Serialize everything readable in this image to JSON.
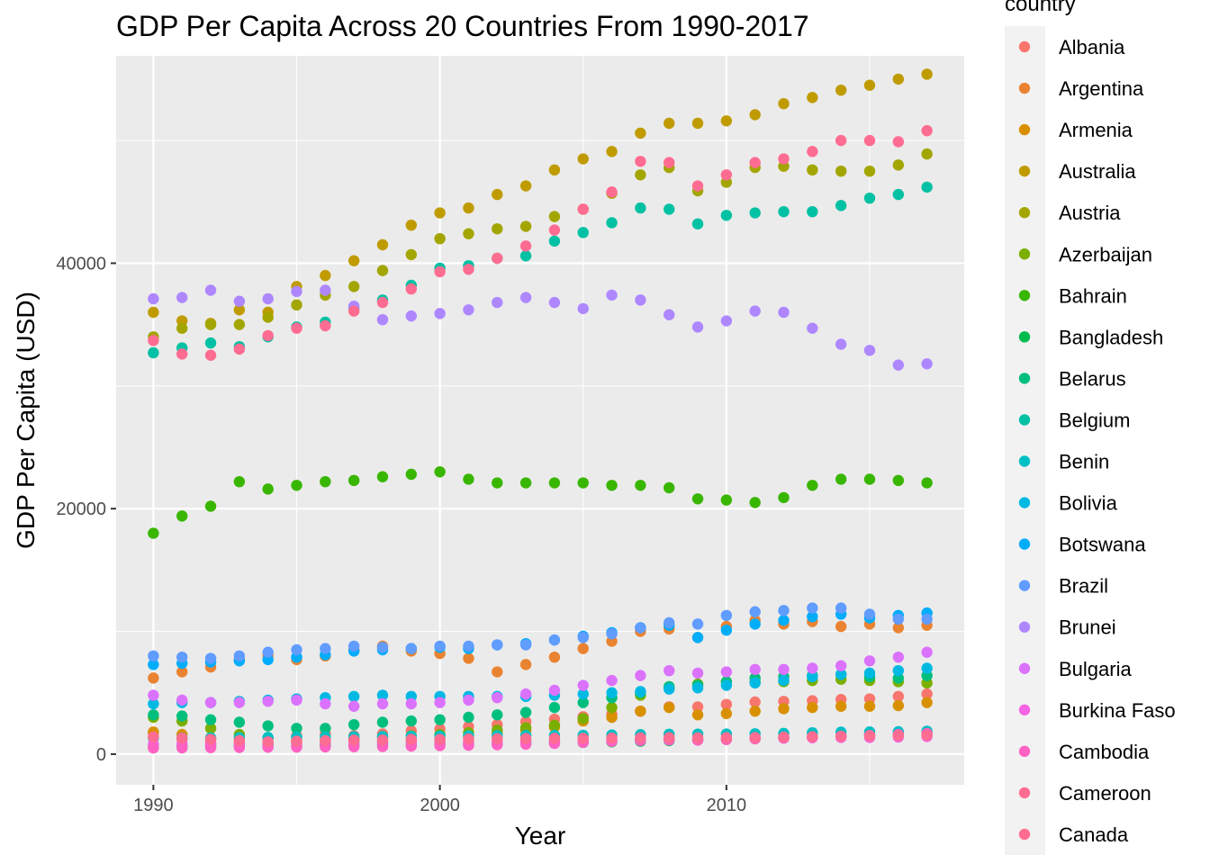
{
  "chart_data": {
    "type": "scatter",
    "title": "GDP Per Capita Across 20 Countries From 1990-2017",
    "xlabel": "Year",
    "ylabel": "GDP Per Capita (USD)",
    "xlim": [
      1988.7,
      2018.3
    ],
    "ylim": [
      -2500,
      56900
    ],
    "x_ticks": [
      1990,
      2000,
      2010
    ],
    "x_tick_labels": [
      "1990",
      "2000",
      "2010"
    ],
    "y_ticks": [
      0,
      20000,
      40000
    ],
    "y_tick_labels": [
      "0",
      "20000",
      "40000"
    ],
    "legend_title": "country",
    "legend_position": "right",
    "grid": true,
    "panel_background": "#ebebeb",
    "x": [
      1990,
      1991,
      1992,
      1993,
      1994,
      1995,
      1996,
      1997,
      1998,
      1999,
      2000,
      2001,
      2002,
      2003,
      2004,
      2005,
      2006,
      2007,
      2008,
      2009,
      2010,
      2011,
      2012,
      2013,
      2014,
      2015,
      2016,
      2017
    ],
    "series": [
      {
        "name": "Albania",
        "color": "#F8766D",
        "values": [
          1700,
          1200,
          1150,
          1250,
          1300,
          1500,
          1650,
          1500,
          1650,
          1900,
          2050,
          2250,
          2400,
          2650,
          2850,
          3050,
          3250,
          3500,
          3850,
          3850,
          4050,
          4250,
          4300,
          4350,
          4450,
          4500,
          4700,
          4900
        ]
      },
      {
        "name": "Argentina",
        "color": "#EA8331",
        "values": [
          6200,
          6700,
          7100,
          7700,
          8000,
          7700,
          8000,
          8500,
          8800,
          8400,
          8200,
          7800,
          6700,
          7300,
          7900,
          8600,
          9200,
          10000,
          10200,
          9500,
          10400,
          10900,
          10600,
          10800,
          10400,
          10600,
          10300,
          10500
        ]
      },
      {
        "name": "Armenia",
        "color": "#D89000",
        "values": [
          1800,
          1600,
          900,
          850,
          850,
          900,
          1000,
          1050,
          1100,
          1150,
          1300,
          1450,
          1700,
          1950,
          2200,
          2700,
          3000,
          3500,
          3800,
          3200,
          3300,
          3500,
          3700,
          3800,
          3900,
          3900,
          3950,
          4200
        ]
      },
      {
        "name": "Australia",
        "color": "#C09B00",
        "values": [
          36000,
          35300,
          35100,
          36200,
          36000,
          38100,
          39000,
          40200,
          41500,
          43100,
          44100,
          44500,
          45600,
          46300,
          47600,
          48500,
          49100,
          50600,
          51400,
          51400,
          51600,
          52100,
          53000,
          53500,
          54100,
          54500,
          55000,
          55400
        ]
      },
      {
        "name": "Austria",
        "color": "#A3A500",
        "values": [
          34000,
          34700,
          35000,
          35000,
          35600,
          36600,
          37400,
          38100,
          39400,
          40700,
          42000,
          42400,
          42800,
          43000,
          43800,
          44400,
          45700,
          47200,
          47800,
          45900,
          46600,
          47800,
          47900,
          47600,
          47500,
          47500,
          48000,
          48900
        ]
      },
      {
        "name": "Azerbaijan",
        "color": "#7CAE00",
        "values": [
          3000,
          2700,
          2100,
          1600,
          1300,
          1100,
          1150,
          1200,
          1350,
          1500,
          1600,
          1750,
          1950,
          2150,
          2350,
          2900,
          3800,
          4800,
          5400,
          5700,
          5900,
          5900,
          5900,
          6000,
          6100,
          6000,
          5900,
          5800
        ]
      },
      {
        "name": "Bahrain",
        "color": "#39B600",
        "values": [
          18000,
          19400,
          20200,
          22200,
          21600,
          21900,
          22200,
          22300,
          22600,
          22800,
          23000,
          22400,
          22100,
          22100,
          22100,
          22100,
          21900,
          21900,
          21700,
          20800,
          20700,
          20500,
          20900,
          21900,
          22400,
          22400,
          22300,
          22100
        ]
      },
      {
        "name": "Bangladesh",
        "color": "#00BB4E",
        "values": [
          600,
          620,
          640,
          660,
          680,
          700,
          720,
          740,
          760,
          780,
          800,
          820,
          840,
          870,
          900,
          950,
          1000,
          1050,
          1100,
          1150,
          1200,
          1260,
          1320,
          1390,
          1460,
          1540,
          1630,
          1730
        ]
      },
      {
        "name": "Belarus",
        "color": "#00BF7D",
        "values": [
          3200,
          3100,
          2800,
          2600,
          2300,
          2100,
          2100,
          2400,
          2600,
          2700,
          2800,
          3000,
          3200,
          3400,
          3800,
          4200,
          4600,
          5000,
          5500,
          5600,
          5900,
          6200,
          6300,
          6400,
          6500,
          6300,
          6200,
          6400
        ]
      },
      {
        "name": "Belgium",
        "color": "#00C1A3",
        "values": [
          32700,
          33100,
          33500,
          33200,
          34000,
          34800,
          35200,
          36300,
          37000,
          38200,
          39600,
          39800,
          40400,
          40600,
          41800,
          42500,
          43300,
          44500,
          44400,
          43200,
          43900,
          44100,
          44200,
          44200,
          44700,
          45300,
          45600,
          46200
        ]
      },
      {
        "name": "Benin",
        "color": "#00BFC4",
        "values": [
          1300,
          1320,
          1330,
          1340,
          1360,
          1380,
          1400,
          1420,
          1440,
          1460,
          1480,
          1500,
          1510,
          1520,
          1530,
          1540,
          1560,
          1590,
          1620,
          1630,
          1640,
          1660,
          1690,
          1740,
          1790,
          1810,
          1830,
          1870
        ]
      },
      {
        "name": "Bolivia",
        "color": "#00B9E3",
        "values": [
          4100,
          4200,
          4200,
          4300,
          4400,
          4500,
          4600,
          4700,
          4800,
          4700,
          4700,
          4700,
          4700,
          4700,
          4800,
          4900,
          5000,
          5100,
          5300,
          5400,
          5600,
          5800,
          6000,
          6300,
          6500,
          6600,
          6800,
          7000
        ]
      },
      {
        "name": "Botswana",
        "color": "#00ADFA",
        "values": [
          7300,
          7400,
          7500,
          7600,
          7700,
          7900,
          8100,
          8400,
          8500,
          8600,
          8700,
          8600,
          8900,
          9000,
          9300,
          9600,
          9900,
          10300,
          10500,
          9500,
          10100,
          10600,
          10900,
          11200,
          11400,
          11100,
          11300,
          11500
        ]
      },
      {
        "name": "Brazil",
        "color": "#619CFF",
        "values": [
          8000,
          7900,
          7800,
          8000,
          8300,
          8500,
          8600,
          8800,
          8700,
          8600,
          8800,
          8800,
          8900,
          8900,
          9300,
          9500,
          9800,
          10300,
          10700,
          10600,
          11300,
          11600,
          11700,
          11900,
          11900,
          11400,
          11000,
          11000
        ]
      },
      {
        "name": "Brunei",
        "color": "#AE87FF",
        "values": [
          37100,
          37200,
          37800,
          36900,
          37100,
          37700,
          37800,
          36500,
          35400,
          35700,
          35900,
          36200,
          36800,
          37200,
          36800,
          36300,
          37400,
          37000,
          35800,
          34800,
          35300,
          36100,
          36000,
          34700,
          33400,
          32900,
          31700,
          31800
        ]
      },
      {
        "name": "Bulgaria",
        "color": "#DB72FB",
        "values": [
          4800,
          4400,
          4200,
          4200,
          4300,
          4400,
          4100,
          3900,
          4100,
          4100,
          4200,
          4400,
          4600,
          4900,
          5200,
          5600,
          6000,
          6400,
          6800,
          6600,
          6700,
          6900,
          6900,
          7000,
          7200,
          7600,
          7900,
          8300
        ]
      },
      {
        "name": "Burkina Faso",
        "color": "#F564E3",
        "values": [
          800,
          820,
          830,
          840,
          840,
          860,
          900,
          920,
          940,
          960,
          970,
          990,
          1000,
          1040,
          1060,
          1110,
          1130,
          1150,
          1170,
          1170,
          1220,
          1260,
          1300,
          1330,
          1360,
          1360,
          1390,
          1430
        ]
      },
      {
        "name": "Cambodia",
        "color": "#FF61C3",
        "values": [
          500,
          510,
          530,
          540,
          560,
          570,
          590,
          600,
          620,
          650,
          690,
          720,
          760,
          810,
          870,
          960,
          1040,
          1110,
          1160,
          1140,
          1190,
          1250,
          1320,
          1390,
          1450,
          1520,
          1600,
          1680
        ]
      },
      {
        "name": "Cameroon",
        "color": "#FF6C91",
        "values": [
          1400,
          1300,
          1200,
          1100,
          1000,
          1050,
          1100,
          1150,
          1150,
          1200,
          1200,
          1230,
          1250,
          1270,
          1290,
          1290,
          1310,
          1330,
          1340,
          1330,
          1340,
          1350,
          1390,
          1420,
          1460,
          1490,
          1520,
          1550
        ]
      },
      {
        "name": "Canada",
        "color": "#FF6C91",
        "values": [
          33700,
          32600,
          32500,
          33000,
          34100,
          34700,
          34900,
          36100,
          36800,
          37900,
          39300,
          39500,
          40400,
          41400,
          42700,
          44400,
          45800,
          48300,
          48200,
          46300,
          47200,
          48200,
          48500,
          49100,
          50000,
          50000,
          49900,
          50800
        ]
      }
    ]
  }
}
